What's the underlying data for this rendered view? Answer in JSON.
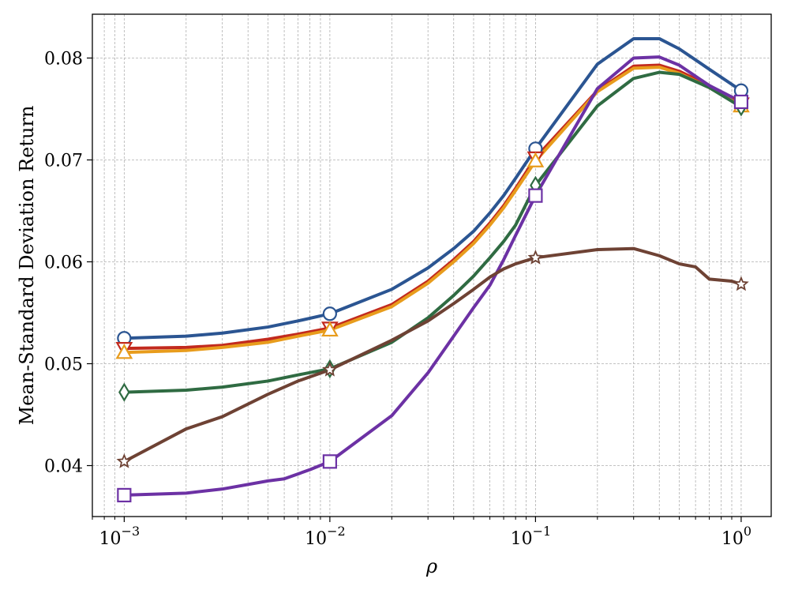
{
  "chart_data": {
    "type": "line",
    "title": "",
    "xlabel": "ρ",
    "ylabel": "Mean-Standard Deviation Return",
    "xscale": "log",
    "xlim": [
      0.0007,
      1.4
    ],
    "ylim": [
      0.035,
      0.0843
    ],
    "grid": true,
    "legend": "none",
    "xticks": [
      {
        "value": 0.001,
        "base": "10",
        "exp": "−3"
      },
      {
        "value": 0.01,
        "base": "10",
        "exp": "−2"
      },
      {
        "value": 0.1,
        "base": "10",
        "exp": "−1"
      },
      {
        "value": 1,
        "base": "10",
        "exp": "0"
      }
    ],
    "yticks": [
      {
        "value": 0.04,
        "label": "0.04"
      },
      {
        "value": 0.05,
        "label": "0.05"
      },
      {
        "value": 0.06,
        "label": "0.06"
      },
      {
        "value": 0.07,
        "label": "0.07"
      },
      {
        "value": 0.08,
        "label": "0.08"
      }
    ],
    "series": [
      {
        "color": "#2b5592",
        "marker": "circle",
        "x": [
          0.001,
          0.002,
          0.003,
          0.005,
          0.007,
          0.01,
          0.02,
          0.03,
          0.04,
          0.05,
          0.06,
          0.07,
          0.08,
          0.1,
          0.2,
          0.3,
          0.4,
          0.5,
          0.7,
          1.0
        ],
        "y": [
          0.0525,
          0.0527,
          0.053,
          0.0536,
          0.0542,
          0.0549,
          0.0573,
          0.0594,
          0.0613,
          0.063,
          0.0648,
          0.0665,
          0.0682,
          0.0711,
          0.0794,
          0.0819,
          0.0819,
          0.0809,
          0.0789,
          0.0768
        ],
        "marker_x": [
          0.001,
          0.01,
          0.1,
          1.0
        ]
      },
      {
        "color": "#c22a1e",
        "marker": "triangle-down",
        "x": [
          0.001,
          0.002,
          0.003,
          0.005,
          0.007,
          0.01,
          0.02,
          0.03,
          0.04,
          0.05,
          0.06,
          0.07,
          0.08,
          0.1,
          0.2,
          0.3,
          0.4,
          0.5,
          0.7,
          1.0
        ],
        "y": [
          0.0515,
          0.0516,
          0.0518,
          0.0524,
          0.0529,
          0.0535,
          0.0558,
          0.0581,
          0.0602,
          0.062,
          0.0638,
          0.0655,
          0.0672,
          0.0702,
          0.0768,
          0.0792,
          0.0793,
          0.0787,
          0.0773,
          0.0755
        ],
        "marker_x": [
          0.001,
          0.01,
          0.1,
          1.0
        ]
      },
      {
        "color": "#e89c1c",
        "marker": "triangle-up",
        "x": [
          0.001,
          0.002,
          0.003,
          0.005,
          0.007,
          0.01,
          0.02,
          0.03,
          0.04,
          0.05,
          0.06,
          0.07,
          0.08,
          0.1,
          0.2,
          0.3,
          0.4,
          0.5,
          0.7,
          1.0
        ],
        "y": [
          0.0511,
          0.0513,
          0.0516,
          0.0521,
          0.0527,
          0.0533,
          0.0556,
          0.0579,
          0.06,
          0.0618,
          0.0636,
          0.0653,
          0.067,
          0.0699,
          0.0767,
          0.079,
          0.0791,
          0.0785,
          0.0771,
          0.0753
        ],
        "marker_x": [
          0.001,
          0.01,
          0.1,
          1.0
        ]
      },
      {
        "color": "#2f6b42",
        "marker": "thin-diamond",
        "x": [
          0.001,
          0.002,
          0.003,
          0.005,
          0.007,
          0.01,
          0.02,
          0.03,
          0.04,
          0.05,
          0.06,
          0.07,
          0.08,
          0.1,
          0.2,
          0.3,
          0.4,
          0.5,
          0.7,
          1.0
        ],
        "y": [
          0.0472,
          0.0474,
          0.0477,
          0.0483,
          0.0489,
          0.0495,
          0.0521,
          0.0545,
          0.0567,
          0.0586,
          0.0604,
          0.062,
          0.0636,
          0.0675,
          0.0753,
          0.078,
          0.0786,
          0.0784,
          0.0771,
          0.0752
        ],
        "marker_x": [
          0.001,
          0.01,
          0.1,
          1.0
        ]
      },
      {
        "color": "#6c31a4",
        "marker": "square",
        "x": [
          0.001,
          0.002,
          0.003,
          0.005,
          0.006,
          0.008,
          0.01,
          0.02,
          0.03,
          0.04,
          0.05,
          0.06,
          0.07,
          0.08,
          0.1,
          0.2,
          0.3,
          0.4,
          0.5,
          0.7,
          1.0
        ],
        "y": [
          0.0371,
          0.0373,
          0.0377,
          0.0385,
          0.0387,
          0.0396,
          0.0404,
          0.0449,
          0.0491,
          0.0527,
          0.0555,
          0.0577,
          0.0602,
          0.0626,
          0.0665,
          0.077,
          0.08,
          0.0801,
          0.0793,
          0.0773,
          0.0757
        ],
        "marker_x": [
          0.001,
          0.01,
          0.1,
          1.0
        ]
      },
      {
        "color": "#6e4234",
        "marker": "star",
        "x": [
          0.001,
          0.002,
          0.003,
          0.005,
          0.007,
          0.01,
          0.02,
          0.03,
          0.04,
          0.05,
          0.06,
          0.07,
          0.08,
          0.1,
          0.2,
          0.3,
          0.4,
          0.5,
          0.6,
          0.7,
          0.9,
          1.0
        ],
        "y": [
          0.0404,
          0.0436,
          0.0448,
          0.047,
          0.0483,
          0.0494,
          0.0523,
          0.0542,
          0.0559,
          0.0573,
          0.0585,
          0.0593,
          0.0598,
          0.0604,
          0.0612,
          0.0613,
          0.0606,
          0.0598,
          0.0595,
          0.0583,
          0.0581,
          0.0578
        ],
        "marker_x": [
          0.001,
          0.01,
          0.1,
          1.0
        ]
      }
    ]
  }
}
